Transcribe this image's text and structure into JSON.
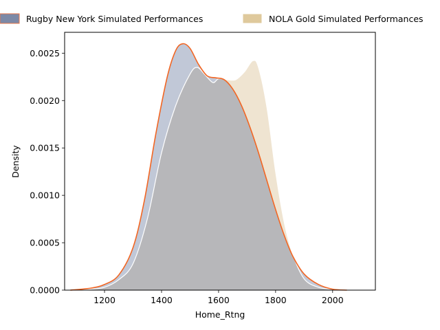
{
  "chart_data": {
    "type": "area",
    "xlabel": "Home_Rtng",
    "ylabel": "Density",
    "xlim": [
      1060,
      2150
    ],
    "ylim": [
      0,
      0.00272
    ],
    "x_ticks": [
      1200,
      1400,
      1600,
      1800,
      2000
    ],
    "x_tick_labels": [
      "1200",
      "1400",
      "1600",
      "1800",
      "2000"
    ],
    "y_ticks": [
      0,
      0.0005,
      0.001,
      0.0015,
      0.002,
      0.0025
    ],
    "y_tick_labels": [
      "0.0000",
      "0.0005",
      "0.0010",
      "0.0015",
      "0.0020",
      "0.0025"
    ],
    "legend_position": "top, outside plot",
    "grid": false,
    "series": [
      {
        "name": "Rugby New York Simulated Performances",
        "fill_color": "#5b6e96",
        "line_color": "#f26522",
        "x": [
          1080,
          1150,
          1200,
          1250,
          1300,
          1340,
          1380,
          1420,
          1450,
          1475,
          1500,
          1530,
          1560,
          1590,
          1620,
          1650,
          1680,
          1710,
          1740,
          1770,
          1800,
          1830,
          1860,
          1900,
          1950,
          2000,
          2050
        ],
        "y": [
          0.0,
          2e-05,
          6e-05,
          0.00016,
          0.00045,
          0.00095,
          0.00165,
          0.00225,
          0.00253,
          0.0026,
          0.00255,
          0.00238,
          0.00226,
          0.00224,
          0.00222,
          0.00212,
          0.00195,
          0.00172,
          0.00145,
          0.00115,
          0.00085,
          0.00058,
          0.00036,
          0.00017,
          6e-05,
          1e-05,
          0.0
        ]
      },
      {
        "name": "NOLA Gold Simulated Performances",
        "fill_color": "#d4b886",
        "line_color": "#ffffff",
        "x": [
          1080,
          1150,
          1200,
          1250,
          1300,
          1350,
          1400,
          1450,
          1500,
          1525,
          1550,
          1580,
          1600,
          1630,
          1660,
          1690,
          1720,
          1740,
          1770,
          1800,
          1830,
          1860,
          1900,
          1950,
          2000,
          2050
        ],
        "y": [
          0.0,
          1e-05,
          3e-05,
          0.00011,
          0.00028,
          0.00075,
          0.00145,
          0.00195,
          0.00228,
          0.00235,
          0.00228,
          0.00219,
          0.00223,
          0.00222,
          0.00222,
          0.0023,
          0.00242,
          0.00235,
          0.00192,
          0.00125,
          0.00072,
          0.00038,
          0.00012,
          3e-05,
          1e-05,
          0.0
        ]
      }
    ]
  }
}
